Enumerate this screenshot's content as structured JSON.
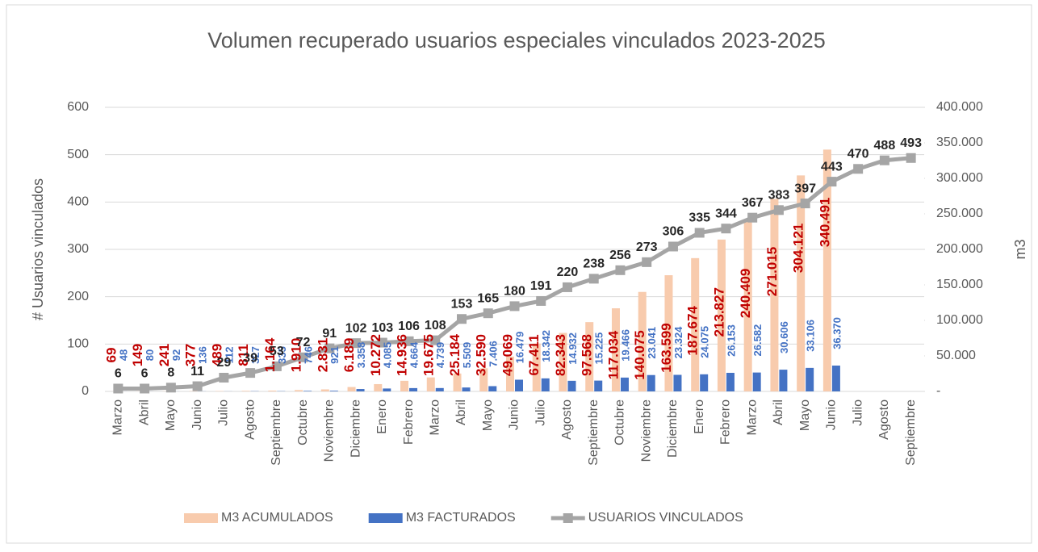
{
  "chart_data": {
    "type": "bar_line",
    "title": "Volumen recuperado usuarios especiales vinculados 2023-2025",
    "y_label": "# Usuarios vinculados",
    "y2_label": "m3",
    "categories": [
      "Marzo",
      "Abril",
      "Mayo",
      "Junio",
      "Julio",
      "Agosto",
      "Septiembre",
      "Octubre",
      "Noviembre",
      "Diciembre",
      "Enero",
      "Febrero",
      "Marzo",
      "Abril",
      "Mayo",
      "Junio",
      "Julio",
      "Agosto",
      "Septiembre",
      "Octubre",
      "Noviembre",
      "Diciembre",
      "Enero",
      "Febrero",
      "Marzo",
      "Abril",
      "Mayo",
      "Junio",
      "Julio",
      "Agosto",
      "Septiembre"
    ],
    "ylim": [
      0,
      600
    ],
    "yticks": [
      0,
      100,
      200,
      300,
      400,
      500,
      600
    ],
    "y2lim": [
      0,
      400000
    ],
    "y2ticks": [
      {
        "value": 0,
        "label": "-"
      },
      {
        "value": 50000,
        "label": "50.000"
      },
      {
        "value": 100000,
        "label": "100.000"
      },
      {
        "value": 150000,
        "label": "150.000"
      },
      {
        "value": 200000,
        "label": "200.000"
      },
      {
        "value": 250000,
        "label": "250.000"
      },
      {
        "value": 300000,
        "label": "300.000"
      },
      {
        "value": 350000,
        "label": "350.000"
      },
      {
        "value": 400000,
        "label": "400.000"
      }
    ],
    "grid": true,
    "legend": "bottom",
    "series": [
      {
        "name": "M3 ACUMULADOS",
        "type": "bar",
        "axis": "y2",
        "color": "#f8cbad",
        "label_color": "#c00000",
        "values": [
          69,
          149,
          241,
          377,
          489,
          811,
          1164,
          1910,
          2831,
          6189,
          10272,
          14936,
          19675,
          25184,
          32590,
          49069,
          67411,
          82343,
          97568,
          117034,
          140075,
          163599,
          187674,
          213827,
          240409,
          271015,
          304121,
          340491,
          null,
          null,
          null
        ],
        "value_labels": [
          "69",
          "149",
          "241",
          "377",
          "489",
          "811",
          "1.164",
          "1.910",
          "2.831",
          "6.189",
          "10.272",
          "14.936",
          "19.675",
          "25.184",
          "32.590",
          "49.069",
          "67.411",
          "82.343",
          "97.568",
          "117.034",
          "140.075",
          "163.599",
          "187.674",
          "213.827",
          "240.409",
          "271.015",
          "304.121",
          "340.491",
          null,
          null,
          null
        ]
      },
      {
        "name": "M3 FACTURADOS",
        "type": "bar",
        "axis": "y2",
        "color": "#4472c4",
        "label_color": "#4472c4",
        "values": [
          48,
          80,
          92,
          136,
          112,
          327,
          335,
          746,
          921,
          3358,
          4085,
          4664,
          4739,
          5509,
          7406,
          16479,
          18342,
          14932,
          15225,
          19466,
          23041,
          23324,
          24075,
          26153,
          26582,
          30606,
          33106,
          36370,
          null,
          null,
          null
        ],
        "value_labels": [
          "48",
          "80",
          "92",
          "136",
          "112",
          "327",
          "335",
          "746",
          "921",
          "3.358",
          "4.085",
          "4.664",
          "4.739",
          "5.509",
          "7.406",
          "16.479",
          "18.342",
          "14.932",
          "15.225",
          "19.466",
          "23.041",
          "23.324",
          "24.075",
          "26.153",
          "26.582",
          "30.606",
          "33.106",
          "36.370",
          null,
          null,
          null
        ]
      },
      {
        "name": "USUARIOS VINCULADOS",
        "type": "line",
        "axis": "y",
        "color": "#a5a5a5",
        "label_color": "#262626",
        "values": [
          6,
          6,
          8,
          11,
          29,
          39,
          53,
          72,
          91,
          102,
          103,
          106,
          108,
          153,
          165,
          180,
          191,
          220,
          238,
          256,
          273,
          306,
          335,
          344,
          367,
          383,
          397,
          443,
          470,
          488,
          493
        ]
      }
    ]
  }
}
